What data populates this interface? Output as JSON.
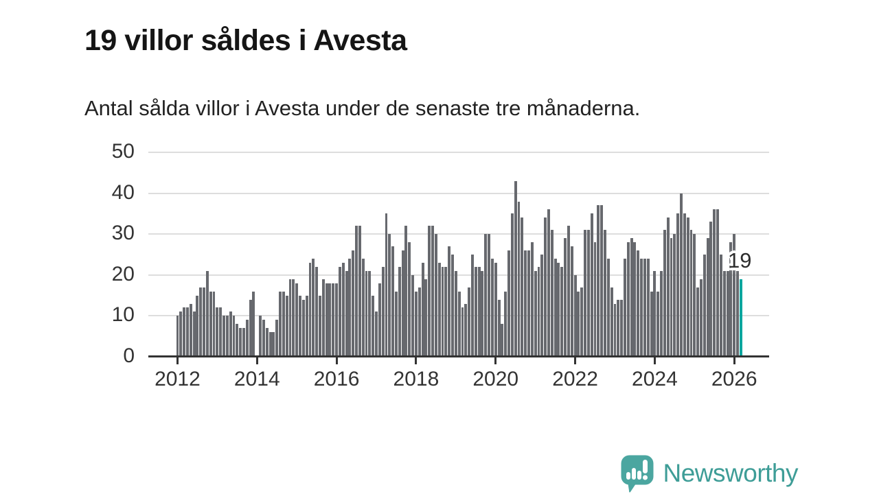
{
  "title": "19 villor såldes i Avesta",
  "subtitle": "Antal sålda villor i Avesta under de senaste tre månaderna.",
  "annotation": {
    "last_value_label": "19"
  },
  "branding": {
    "logo_text": "Newsworthy",
    "logo_icon": "newsworthy-speech-bubble-bar-chart-icon",
    "wordmark_color": "#3e9d97",
    "icon_color": "#4ba6a0"
  },
  "colors": {
    "bar": "#67696e",
    "highlight": "#00a69f",
    "grid": "#dddddd",
    "axis": "#333333",
    "tick_text": "#333333",
    "title_text": "#151515"
  },
  "chart_data": {
    "type": "bar",
    "title": "19 villor såldes i Avesta",
    "subtitle": "Antal sålda villor i Avesta under de senaste tre månaderna.",
    "start_year": 2012,
    "frequency": "monthly",
    "x_tick_labels": [
      "2012",
      "2014",
      "2016",
      "2018",
      "2020",
      "2022",
      "2024",
      "2026"
    ],
    "y_ticks": [
      0,
      10,
      20,
      30,
      40,
      50
    ],
    "ylim": [
      0,
      50
    ],
    "grid": "horizontal",
    "highlight_last_bar": true,
    "last_value": 19,
    "values": [
      10,
      11,
      12,
      12,
      13,
      11,
      15,
      17,
      17,
      21,
      16,
      16,
      12,
      12,
      10,
      10,
      11,
      10,
      8,
      7,
      7,
      9,
      14,
      16,
      null,
      10,
      9,
      7,
      6,
      6,
      9,
      16,
      16,
      15,
      19,
      19,
      18,
      15,
      14,
      15,
      23,
      24,
      22,
      15,
      19,
      18,
      18,
      18,
      18,
      22,
      23,
      21,
      24,
      26,
      32,
      32,
      24,
      21,
      21,
      15,
      11,
      18,
      22,
      35,
      30,
      27,
      16,
      22,
      26,
      32,
      28,
      20,
      16,
      17,
      23,
      19,
      32,
      32,
      30,
      23,
      22,
      22,
      27,
      25,
      21,
      16,
      12,
      13,
      17,
      25,
      22,
      22,
      21,
      30,
      30,
      24,
      23,
      14,
      8,
      16,
      26,
      35,
      43,
      38,
      34,
      26,
      26,
      28,
      21,
      22,
      25,
      34,
      36,
      31,
      24,
      23,
      22,
      29,
      32,
      27,
      20,
      16,
      17,
      31,
      31,
      35,
      28,
      37,
      37,
      31,
      24,
      17,
      13,
      14,
      14,
      24,
      28,
      29,
      28,
      26,
      24,
      24,
      24,
      16,
      21,
      16,
      21,
      31,
      34,
      29,
      30,
      35,
      40,
      35,
      34,
      31,
      30,
      17,
      19,
      25,
      29,
      33,
      36,
      36,
      25,
      21,
      21,
      28,
      30,
      21,
      19
    ]
  }
}
